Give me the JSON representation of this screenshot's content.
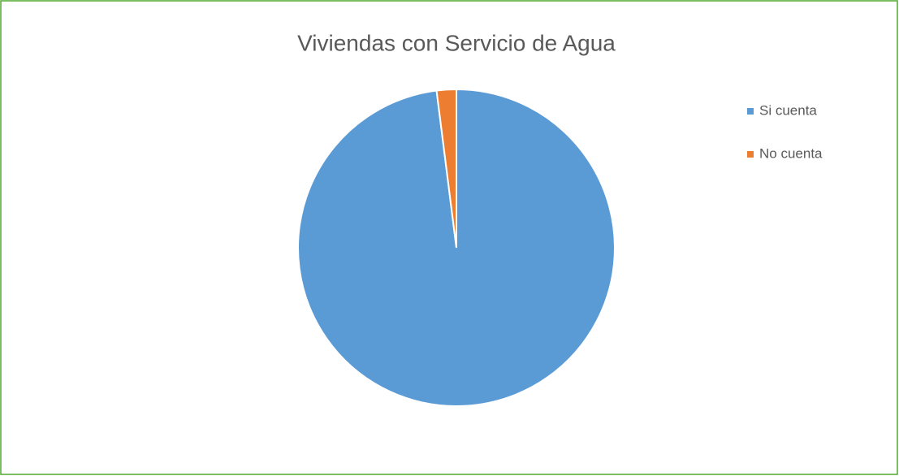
{
  "chart_data": {
    "type": "pie",
    "title": "Viviendas con Servicio de Agua",
    "categories": [
      "Si cuenta",
      "No cuenta"
    ],
    "values": [
      98,
      2
    ],
    "colors": [
      "#5b9bd5",
      "#ed7d31"
    ],
    "legend": "right"
  }
}
